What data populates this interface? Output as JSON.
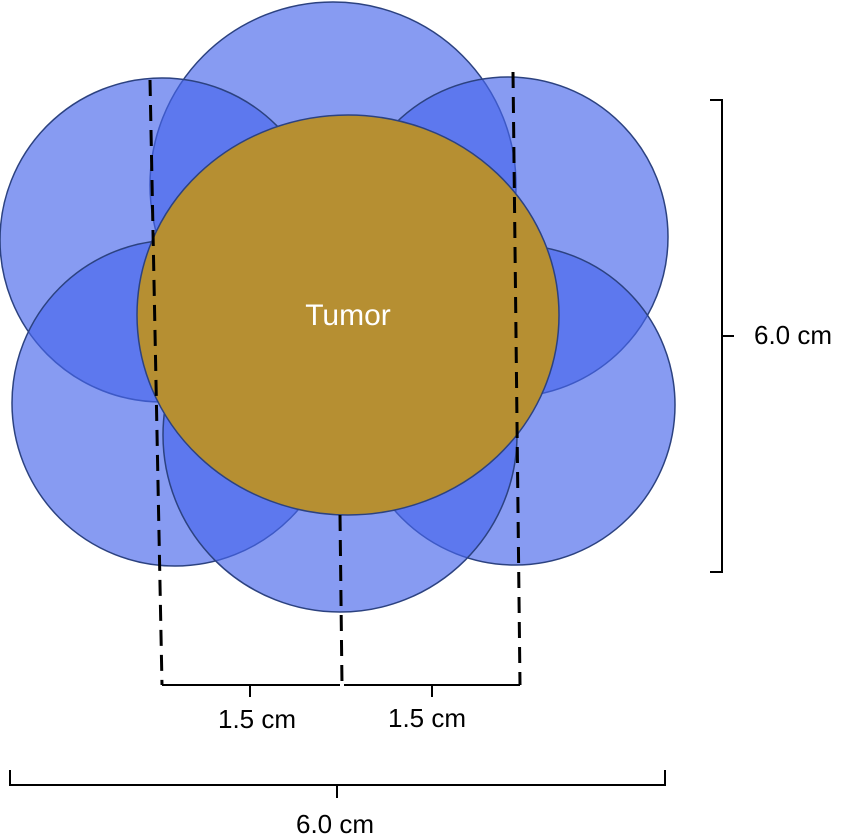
{
  "diagram": {
    "tumor_label": "Tumor",
    "height_label": "6.0 cm",
    "spacing_labels": [
      "1.5 cm",
      "1.5 cm"
    ],
    "width_label": "6.0 cm"
  }
}
